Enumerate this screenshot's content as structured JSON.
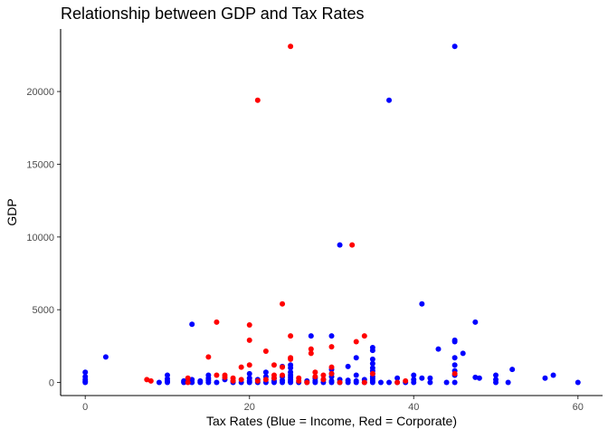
{
  "chart_data": {
    "type": "scatter",
    "title": "Relationship between GDP and Tax Rates",
    "xlabel": "Tax Rates (Blue = Income, Red = Corporate)",
    "ylabel": "GDP",
    "xlim": [
      -3,
      63
    ],
    "ylim": [
      -900,
      24300
    ],
    "x_ticks": [
      0,
      20,
      40,
      60
    ],
    "y_ticks": [
      0,
      5000,
      10000,
      15000,
      20000
    ],
    "grid": false,
    "legend": "none",
    "colors": {
      "income": "#0000ff",
      "corporate": "#ff0000"
    },
    "series": [
      {
        "points": [
          [
            0,
            0
          ],
          [
            0,
            80
          ],
          [
            0,
            200
          ],
          [
            0,
            400
          ],
          [
            0,
            700
          ],
          [
            2.5,
            1750
          ],
          [
            9,
            0
          ],
          [
            10,
            0
          ],
          [
            10,
            100
          ],
          [
            10,
            250
          ],
          [
            10,
            500
          ],
          [
            12,
            0
          ],
          [
            12,
            100
          ],
          [
            13,
            0
          ],
          [
            13,
            200
          ],
          [
            13,
            4000
          ],
          [
            14,
            0
          ],
          [
            14,
            100
          ],
          [
            15,
            0
          ],
          [
            15,
            150
          ],
          [
            15,
            300
          ],
          [
            15,
            500
          ],
          [
            16,
            0
          ],
          [
            17,
            200
          ],
          [
            18,
            0
          ],
          [
            18,
            100
          ],
          [
            19,
            0
          ],
          [
            20,
            0
          ],
          [
            20,
            100
          ],
          [
            20,
            300
          ],
          [
            20,
            600
          ],
          [
            21,
            0
          ],
          [
            21,
            200
          ],
          [
            22,
            0
          ],
          [
            22,
            400
          ],
          [
            22,
            700
          ],
          [
            23,
            0
          ],
          [
            23,
            100
          ],
          [
            23,
            300
          ],
          [
            24,
            0
          ],
          [
            24,
            150
          ],
          [
            24,
            400
          ],
          [
            24,
            1100
          ],
          [
            25,
            0
          ],
          [
            25,
            80
          ],
          [
            25,
            200
          ],
          [
            25,
            350
          ],
          [
            25,
            500
          ],
          [
            25,
            700
          ],
          [
            25,
            1000
          ],
          [
            25,
            1200
          ],
          [
            26,
            0
          ],
          [
            27,
            0
          ],
          [
            27,
            100
          ],
          [
            27.5,
            3200
          ],
          [
            28,
            0
          ],
          [
            28,
            100
          ],
          [
            28,
            300
          ],
          [
            29,
            0
          ],
          [
            29,
            200
          ],
          [
            30,
            0
          ],
          [
            30,
            100
          ],
          [
            30,
            400
          ],
          [
            30,
            600
          ],
          [
            30,
            900
          ],
          [
            30,
            3200
          ],
          [
            31,
            9450
          ],
          [
            31,
            0
          ],
          [
            31,
            200
          ],
          [
            32,
            0
          ],
          [
            32,
            150
          ],
          [
            32,
            1100
          ],
          [
            33,
            0
          ],
          [
            33,
            100
          ],
          [
            33,
            500
          ],
          [
            33,
            1700
          ],
          [
            34,
            0
          ],
          [
            34,
            200
          ],
          [
            35,
            0
          ],
          [
            35,
            100
          ],
          [
            35,
            250
          ],
          [
            35,
            400
          ],
          [
            35,
            600
          ],
          [
            35,
            800
          ],
          [
            35,
            1000
          ],
          [
            35,
            1300
          ],
          [
            35,
            1600
          ],
          [
            35,
            2200
          ],
          [
            35,
            2400
          ],
          [
            36,
            0
          ],
          [
            37,
            0
          ],
          [
            37,
            19400
          ],
          [
            38,
            0
          ],
          [
            38,
            300
          ],
          [
            39,
            0
          ],
          [
            40,
            0
          ],
          [
            40,
            200
          ],
          [
            40,
            500
          ],
          [
            41,
            300
          ],
          [
            41,
            5400
          ],
          [
            42,
            0
          ],
          [
            42,
            300
          ],
          [
            43,
            2300
          ],
          [
            44,
            0
          ],
          [
            45,
            0
          ],
          [
            45,
            500
          ],
          [
            45,
            800
          ],
          [
            45,
            1200
          ],
          [
            45,
            1700
          ],
          [
            45,
            2800
          ],
          [
            45,
            2900
          ],
          [
            45,
            23100
          ],
          [
            46,
            2000
          ],
          [
            47.5,
            4150
          ],
          [
            47.5,
            350
          ],
          [
            48,
            300
          ],
          [
            50,
            0
          ],
          [
            50,
            200
          ],
          [
            50,
            500
          ],
          [
            51.5,
            0
          ],
          [
            52,
            900
          ],
          [
            56,
            300
          ],
          [
            57,
            500
          ],
          [
            60,
            0
          ]
        ]
      },
      {
        "points": [
          [
            7.5,
            200
          ],
          [
            8,
            100
          ],
          [
            12.5,
            0
          ],
          [
            12.5,
            300
          ],
          [
            15,
            1750
          ],
          [
            16,
            4150
          ],
          [
            16,
            500
          ],
          [
            17,
            350
          ],
          [
            17,
            500
          ],
          [
            18,
            100
          ],
          [
            18,
            300
          ],
          [
            19,
            1050
          ],
          [
            19,
            200
          ],
          [
            20,
            3950
          ],
          [
            20,
            2900
          ],
          [
            20,
            1200
          ],
          [
            21,
            19400
          ],
          [
            21,
            100
          ],
          [
            22,
            2150
          ],
          [
            22,
            200
          ],
          [
            23,
            1200
          ],
          [
            23,
            500
          ],
          [
            23,
            300
          ],
          [
            24,
            5400
          ],
          [
            24,
            1050
          ],
          [
            24,
            500
          ],
          [
            25,
            23100
          ],
          [
            25,
            3200
          ],
          [
            25,
            1700
          ],
          [
            25,
            1600
          ],
          [
            26,
            300
          ],
          [
            26,
            100
          ],
          [
            27,
            0
          ],
          [
            27.5,
            2300
          ],
          [
            27.5,
            2000
          ],
          [
            28,
            700
          ],
          [
            28,
            400
          ],
          [
            29,
            500
          ],
          [
            29,
            200
          ],
          [
            30,
            2450
          ],
          [
            30,
            1050
          ],
          [
            30,
            600
          ],
          [
            31,
            0
          ],
          [
            32.5,
            9450
          ],
          [
            33,
            2800
          ],
          [
            34,
            3200
          ],
          [
            34,
            0
          ],
          [
            35,
            600
          ],
          [
            38,
            0
          ],
          [
            39,
            100
          ],
          [
            45,
            600
          ]
        ]
      }
    ]
  }
}
